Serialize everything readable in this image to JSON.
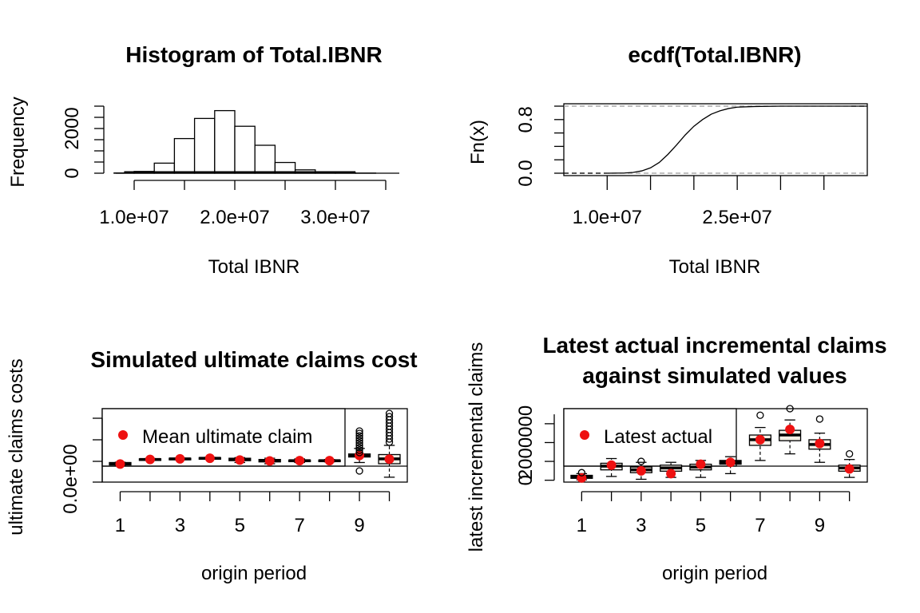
{
  "chart_data": [
    {
      "id": "hist",
      "type": "bar",
      "title": "Histogram of Total.IBNR",
      "xlabel": "Total IBNR",
      "ylabel": "Frequency",
      "xlim": [
        8000000,
        37000000
      ],
      "ylim": [
        0,
        3000
      ],
      "x_ticks": [
        10000000,
        20000000,
        30000000
      ],
      "x_tick_labels": [
        "1.0e+07",
        "2.0e+07",
        "3.0e+07"
      ],
      "y_ticks": [
        0,
        2000
      ],
      "y_tick_labels": [
        "0",
        "2000"
      ],
      "bin_edges": [
        8000000,
        10000000,
        12000000,
        14000000,
        16000000,
        18000000,
        20000000,
        22000000,
        24000000,
        26000000,
        28000000,
        30000000,
        32000000,
        34000000
      ],
      "values": [
        10,
        80,
        450,
        1550,
        2450,
        2800,
        2100,
        1250,
        480,
        150,
        50,
        15,
        5
      ]
    },
    {
      "id": "ecdf",
      "type": "line",
      "title": "ecdf(Total.IBNR)",
      "xlabel": "Total IBNR",
      "ylabel": "Fn(x)",
      "xlim": [
        5000000,
        40000000
      ],
      "ylim": [
        0,
        1
      ],
      "x_ticks": [
        10000000,
        25000000
      ],
      "x_tick_labels": [
        "1.0e+07",
        "2.5e+07"
      ],
      "y_ticks": [
        0,
        0.8
      ],
      "y_tick_labels": [
        "0.0",
        "0.8"
      ],
      "x": [
        10000000,
        12000000,
        13000000,
        14000000,
        15000000,
        16000000,
        17000000,
        18000000,
        19000000,
        20000000,
        21000000,
        22000000,
        23000000,
        24000000,
        25000000,
        27000000,
        30000000,
        40000000
      ],
      "y": [
        0.0,
        0.003,
        0.012,
        0.035,
        0.08,
        0.16,
        0.28,
        0.42,
        0.57,
        0.7,
        0.8,
        0.88,
        0.93,
        0.965,
        0.985,
        0.995,
        1.0,
        1.0
      ]
    },
    {
      "id": "ult",
      "type": "box",
      "title": "Simulated ultimate claims cost",
      "xlabel": "origin period",
      "ylabel": "ultimate claims costs",
      "y_tick_labels": [
        "0.0e+00"
      ],
      "ylim": [
        -40000000,
        80000000
      ],
      "x_tick_labels": [
        "1",
        "3",
        "5",
        "7",
        "9"
      ],
      "x_ticks": [
        1,
        3,
        5,
        7,
        9
      ],
      "legend": {
        "label": "Mean ultimate claim",
        "position": "top-left"
      },
      "categories": [
        "1",
        "2",
        "3",
        "4",
        "5",
        "6",
        "7",
        "8",
        "9",
        "10"
      ],
      "boxes": [
        {
          "q1": -12000000,
          "median": -10000000,
          "q3": -8000000,
          "lo": -12500000,
          "hi": -7500000,
          "mean": -10500000
        },
        {
          "q1": -4000000,
          "median": -3000000,
          "q3": -2000000,
          "lo": -4500000,
          "hi": -1500000,
          "mean": -3000000
        },
        {
          "q1": -3000000,
          "median": -2000000,
          "q3": -1000000,
          "lo": -3500000,
          "hi": -500000,
          "mean": -2000000
        },
        {
          "q1": -2000000,
          "median": -1000000,
          "q3": 0,
          "lo": -2500000,
          "hi": 500000,
          "mean": -1000000
        },
        {
          "q1": -5000000,
          "median": -3000000,
          "q3": -1000000,
          "lo": -8000000,
          "hi": 0,
          "mean": -4000000
        },
        {
          "q1": -7000000,
          "median": -5000000,
          "q3": -3000000,
          "lo": -10000000,
          "hi": -1000000,
          "mean": -5500000
        },
        {
          "q1": -6000000,
          "median": -5000000,
          "q3": -4000000,
          "lo": -8000000,
          "hi": -2000000,
          "mean": -5000000
        },
        {
          "q1": -6000000,
          "median": -5000000,
          "q3": -4000000,
          "lo": -7000000,
          "hi": -3000000,
          "mean": -5000000
        },
        {
          "q1": 1000000,
          "median": 3000000,
          "q3": 6000000,
          "lo": -8000000,
          "hi": 15000000,
          "mean": 3500000
        },
        {
          "q1": -10000000,
          "median": -2000000,
          "q3": 5000000,
          "lo": -32000000,
          "hi": 20000000,
          "mean": -2500000
        }
      ]
    },
    {
      "id": "inc",
      "type": "box",
      "title": "Latest actual incremental claims\nagainst simulated values",
      "xlabel": "origin period",
      "ylabel": "latest incremental claims",
      "y_ticks": [
        0,
        2000000
      ],
      "y_tick_labels": [
        "0",
        "2000000"
      ],
      "ylim": [
        -100000,
        3800000
      ],
      "x_tick_labels": [
        "1",
        "3",
        "5",
        "7",
        "9"
      ],
      "x_ticks": [
        1,
        3,
        5,
        7,
        9
      ],
      "legend": {
        "label": "Latest actual",
        "position": "top-left"
      },
      "categories": [
        "1",
        "2",
        "3",
        "4",
        "5",
        "6",
        "7",
        "8",
        "9",
        "10"
      ],
      "boxes": [
        {
          "q1": 100000,
          "median": 180000,
          "q3": 260000,
          "lo": 20000,
          "hi": 350000,
          "mean": 120000
        },
        {
          "q1": 550000,
          "median": 750000,
          "q3": 900000,
          "lo": 200000,
          "hi": 1150000,
          "mean": 800000
        },
        {
          "q1": 400000,
          "median": 550000,
          "q3": 700000,
          "lo": 50000,
          "hi": 950000,
          "mean": 500000
        },
        {
          "q1": 480000,
          "median": 650000,
          "q3": 800000,
          "lo": 150000,
          "hi": 950000,
          "mean": 350000
        },
        {
          "q1": 550000,
          "median": 700000,
          "q3": 850000,
          "lo": 150000,
          "hi": 1050000,
          "mean": 850000
        },
        {
          "q1": 850000,
          "median": 950000,
          "q3": 1050000,
          "lo": 350000,
          "hi": 1250000,
          "mean": 950000
        },
        {
          "q1": 1850000,
          "median": 2150000,
          "q3": 2400000,
          "lo": 1050000,
          "hi": 2800000,
          "mean": 2150000
        },
        {
          "q1": 2100000,
          "median": 2400000,
          "q3": 2650000,
          "lo": 1400000,
          "hi": 3200000,
          "mean": 2700000
        },
        {
          "q1": 1650000,
          "median": 1900000,
          "q3": 2150000,
          "lo": 950000,
          "hi": 2500000,
          "mean": 1950000
        },
        {
          "q1": 480000,
          "median": 650000,
          "q3": 800000,
          "lo": 150000,
          "hi": 1100000,
          "mean": 600000
        }
      ],
      "outliers": [
        [
          1,
          400000
        ],
        [
          3,
          1000000
        ],
        [
          7,
          3450000
        ],
        [
          8,
          3800000
        ],
        [
          9,
          3250000
        ],
        [
          10,
          1400000
        ]
      ]
    }
  ]
}
